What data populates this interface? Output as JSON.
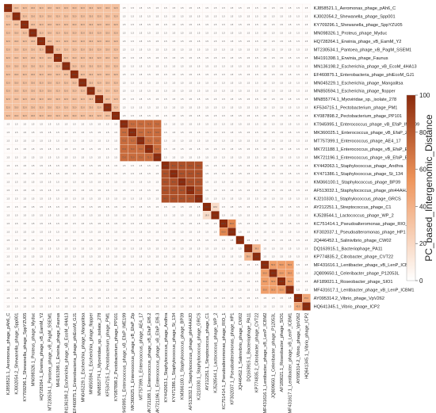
{
  "chart_data": {
    "type": "heatmap",
    "labels": [
      "KJ858521.1_Aeromonas_phage_pAh6_C",
      "KJ002054.2_Shewanella_phage_Spp001",
      "KY709296.1_Shewanella_phage_SppYZU05",
      "MN098326.1_Proteus_phage_Myduc",
      "HQ728264.1_Erwinia_phage_vB_EamM_Y2",
      "MT230534.1_Pantoea_phage_vB_PagM_SSEM1",
      "MH191398.1_Erwinia_phage_Faunus",
      "MN136198.2_Escherichia_phage_vB_EcoM_4HA13",
      "EF460875.1_Enterobacteria_phage_phiEcoM_GJ1",
      "MN045229.1_Escherichia_phage_Mangalitsa",
      "MN850594.1_Escherichia_phage_flopper",
      "MN855774.1_Myoviridae_sp._isolate_278",
      "KF534715.1_Pectobacterium_phage_PM1",
      "KY087898.2_Pectobacterium_phage_PP101",
      "KT945995.1_Enterococcus_phage_vB_EfaP_IME199",
      "MK360025.1_Enterococcus_phage_vB_EfaP_Zip",
      "MT757399.1_Enterococcus_phage_AE4_17",
      "MK721188.1_Enterococcus_phage_vB_EfaP_Ef6.2",
      "MK721196.1_Enterococcus_phage_vB_EfaP_Ef6.3",
      "KY442063.1_Staphylococcus_phage_Andhra",
      "KY471386.1_Staphylococcus_phage_St_134",
      "KM366100.1_Staphylococcus_phage_BP39",
      "AF513032.1_Staphylococcus_phage_phi44AHJD",
      "KJ210330.1_Staphylococcus_phage_GRCS",
      "AY212251.1_Streptococcus_phage_C1",
      "KJ528544.1_Lactococcus_phage_WP_2",
      "KC751414.1_Pseudoalteromonas_phage_RIO_1",
      "KF302037.1_Pseudoalteromonas_phage_HP1",
      "JQ446452.1_Salinivibrio_phage_CW02",
      "DQ163915.1_Bacteriophage_PA11",
      "KP774835.2_Citrobacter_phage_CVT22",
      "MF431616.1_Lentibacter_phage_vB_LenP_ICBM2",
      "JQ809650.1_Celeribacter_phage_P12053L",
      "AF189021.1_Roseobacter_phage_SIO1",
      "MF431617.1_Lentibacter_phage_vB_LenP_ICBM1",
      "AY095314.2_Vibrio_phage_VpV262",
      "HQ641345.1_Vibrio_phage_ICP2"
    ],
    "colorbar": {
      "title": "PC_based_Intergenomic_Distance",
      "ticks": [
        0,
        20,
        40,
        60,
        80,
        100
      ],
      "range": [
        0,
        100
      ],
      "low_color": "#ffffff",
      "high_color": "#8b2a0c"
    },
    "clusters": [
      {
        "start": 0,
        "end": 13,
        "within": 32
      },
      {
        "start": 14,
        "end": 18,
        "within": 72
      },
      {
        "start": 19,
        "end": 23,
        "within": 84
      },
      {
        "start": 24,
        "end": 25,
        "within": 18
      },
      {
        "start": 26,
        "end": 27,
        "within": 60
      },
      {
        "start": 28,
        "end": 28,
        "within": 0
      },
      {
        "start": 29,
        "end": 30,
        "within": 38
      },
      {
        "start": 31,
        "end": 34,
        "within": 50
      },
      {
        "start": 35,
        "end": 36,
        "within": 45
      }
    ],
    "between_clusters": 1.5,
    "diagonal": 100,
    "xlabel": "",
    "ylabel": ""
  }
}
